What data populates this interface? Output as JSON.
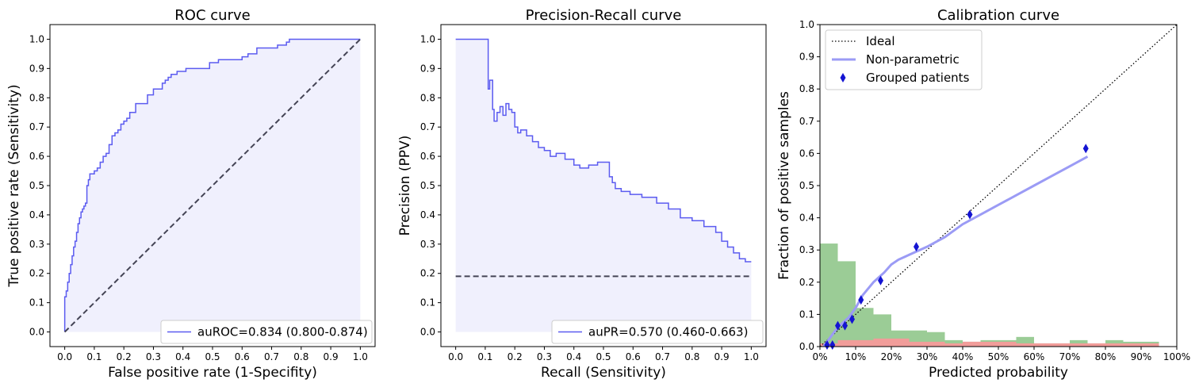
{
  "colors": {
    "curve": "#5b5bf0",
    "fill": "#f0f0fd",
    "chance": "#444455",
    "nonparam": "#9b9bf5",
    "marker": "#1414d2",
    "hist_green": "#9bcc96",
    "hist_red": "#f59a9a"
  },
  "chart_data": [
    {
      "type": "line",
      "title": "ROC curve",
      "xlabel": "False positive rate (1-Specifity)",
      "ylabel": "True positive rate (Sensitivity)",
      "xlim": [
        0,
        1
      ],
      "ylim": [
        0,
        1
      ],
      "xticks": [
        "0.0",
        "0.1",
        "0.2",
        "0.3",
        "0.4",
        "0.5",
        "0.6",
        "0.7",
        "0.8",
        "0.9",
        "1.0"
      ],
      "yticks": [
        "0.0",
        "0.1",
        "0.2",
        "0.3",
        "0.4",
        "0.5",
        "0.6",
        "0.7",
        "0.8",
        "0.9",
        "1.0"
      ],
      "legend_position": "lower-right",
      "series": [
        {
          "name": "auROC=0.834 (0.800-0.874)",
          "x": [
            0,
            0,
            0.005,
            0.005,
            0.01,
            0.01,
            0.015,
            0.015,
            0.02,
            0.02,
            0.025,
            0.025,
            0.03,
            0.03,
            0.035,
            0.035,
            0.04,
            0.04,
            0.045,
            0.045,
            0.05,
            0.05,
            0.055,
            0.055,
            0.06,
            0.06,
            0.065,
            0.065,
            0.07,
            0.07,
            0.075,
            0.075,
            0.08,
            0.08,
            0.085,
            0.085,
            0.09,
            0.09,
            0.1,
            0.1,
            0.11,
            0.11,
            0.12,
            0.12,
            0.13,
            0.13,
            0.14,
            0.14,
            0.15,
            0.15,
            0.16,
            0.16,
            0.17,
            0.17,
            0.18,
            0.18,
            0.19,
            0.19,
            0.2,
            0.2,
            0.21,
            0.21,
            0.22,
            0.22,
            0.23,
            0.23,
            0.24,
            0.24,
            0.26,
            0.26,
            0.28,
            0.28,
            0.3,
            0.3,
            0.31,
            0.31,
            0.33,
            0.33,
            0.34,
            0.34,
            0.35,
            0.35,
            0.36,
            0.36,
            0.37,
            0.37,
            0.38,
            0.38,
            0.39,
            0.39,
            0.41,
            0.41,
            0.43,
            0.43,
            0.49,
            0.49,
            0.52,
            0.52,
            0.55,
            0.55,
            0.6,
            0.6,
            0.62,
            0.62,
            0.65,
            0.65,
            0.72,
            0.72,
            0.75,
            0.75,
            0.76,
            0.76,
            1.0
          ],
          "y": [
            0,
            0.12,
            0.12,
            0.14,
            0.14,
            0.17,
            0.17,
            0.2,
            0.2,
            0.23,
            0.23,
            0.26,
            0.26,
            0.29,
            0.29,
            0.31,
            0.31,
            0.34,
            0.34,
            0.37,
            0.37,
            0.39,
            0.39,
            0.41,
            0.41,
            0.42,
            0.42,
            0.43,
            0.43,
            0.44,
            0.44,
            0.5,
            0.5,
            0.52,
            0.52,
            0.54,
            0.54,
            0.54,
            0.54,
            0.55,
            0.55,
            0.56,
            0.56,
            0.58,
            0.58,
            0.6,
            0.6,
            0.61,
            0.61,
            0.64,
            0.64,
            0.67,
            0.67,
            0.68,
            0.68,
            0.69,
            0.69,
            0.71,
            0.71,
            0.72,
            0.72,
            0.73,
            0.73,
            0.75,
            0.75,
            0.75,
            0.75,
            0.78,
            0.78,
            0.78,
            0.78,
            0.81,
            0.81,
            0.83,
            0.83,
            0.83,
            0.83,
            0.85,
            0.85,
            0.86,
            0.86,
            0.87,
            0.87,
            0.88,
            0.88,
            0.88,
            0.88,
            0.89,
            0.89,
            0.89,
            0.89,
            0.9,
            0.9,
            0.9,
            0.9,
            0.92,
            0.92,
            0.93,
            0.93,
            0.93,
            0.93,
            0.94,
            0.94,
            0.95,
            0.95,
            0.97,
            0.97,
            0.98,
            0.98,
            0.99,
            0.99,
            1.0,
            1.0
          ]
        },
        {
          "name": "",
          "style": "dashed",
          "x": [
            0,
            1
          ],
          "y": [
            0,
            1
          ]
        }
      ]
    },
    {
      "type": "line",
      "title": "Precision-Recall curve",
      "xlabel": "Recall (Sensitivity)",
      "ylabel": "Precision (PPV)",
      "xlim": [
        0,
        1
      ],
      "ylim": [
        0,
        1
      ],
      "xticks": [
        "0.0",
        "0.1",
        "0.2",
        "0.3",
        "0.4",
        "0.5",
        "0.6",
        "0.7",
        "0.8",
        "0.9",
        "1.0"
      ],
      "yticks": [
        "0.0",
        "0.1",
        "0.2",
        "0.3",
        "0.4",
        "0.5",
        "0.6",
        "0.7",
        "0.8",
        "0.9",
        "1.0"
      ],
      "legend_position": "lower-right",
      "series": [
        {
          "name": "auPR=0.570 (0.460-0.663)",
          "x": [
            0,
            0.11,
            0.11,
            0.115,
            0.115,
            0.125,
            0.125,
            0.13,
            0.13,
            0.14,
            0.14,
            0.15,
            0.15,
            0.16,
            0.16,
            0.17,
            0.17,
            0.18,
            0.18,
            0.19,
            0.19,
            0.2,
            0.2,
            0.21,
            0.21,
            0.22,
            0.22,
            0.24,
            0.24,
            0.26,
            0.26,
            0.28,
            0.28,
            0.3,
            0.3,
            0.32,
            0.32,
            0.34,
            0.34,
            0.37,
            0.37,
            0.4,
            0.4,
            0.42,
            0.42,
            0.45,
            0.45,
            0.48,
            0.48,
            0.5,
            0.5,
            0.52,
            0.52,
            0.53,
            0.53,
            0.54,
            0.54,
            0.56,
            0.56,
            0.59,
            0.59,
            0.63,
            0.63,
            0.68,
            0.68,
            0.72,
            0.72,
            0.76,
            0.76,
            0.8,
            0.8,
            0.84,
            0.84,
            0.88,
            0.88,
            0.9,
            0.9,
            0.92,
            0.92,
            0.94,
            0.94,
            0.96,
            0.96,
            0.98,
            0.98,
            1.0
          ],
          "y": [
            1.0,
            1.0,
            0.83,
            0.83,
            0.86,
            0.86,
            0.76,
            0.76,
            0.72,
            0.72,
            0.75,
            0.75,
            0.77,
            0.77,
            0.74,
            0.74,
            0.78,
            0.78,
            0.76,
            0.76,
            0.75,
            0.75,
            0.7,
            0.7,
            0.68,
            0.68,
            0.69,
            0.69,
            0.67,
            0.67,
            0.65,
            0.65,
            0.63,
            0.63,
            0.62,
            0.62,
            0.6,
            0.6,
            0.61,
            0.61,
            0.59,
            0.59,
            0.57,
            0.57,
            0.56,
            0.56,
            0.57,
            0.57,
            0.58,
            0.58,
            0.58,
            0.58,
            0.53,
            0.53,
            0.51,
            0.51,
            0.49,
            0.49,
            0.48,
            0.48,
            0.47,
            0.47,
            0.46,
            0.46,
            0.44,
            0.44,
            0.42,
            0.42,
            0.39,
            0.39,
            0.38,
            0.38,
            0.36,
            0.36,
            0.34,
            0.34,
            0.31,
            0.31,
            0.29,
            0.29,
            0.27,
            0.27,
            0.25,
            0.25,
            0.24,
            0.24
          ]
        },
        {
          "name": "",
          "style": "dashed",
          "x": [
            0,
            1
          ],
          "y": [
            0.19,
            0.19
          ]
        }
      ]
    },
    {
      "type": "line",
      "title": "Calibration curve",
      "xlabel": "Predicted probability",
      "ylabel": "Fraction of positive samples",
      "xlim": [
        0,
        1
      ],
      "ylim": [
        0,
        1
      ],
      "xticks": [
        "0%",
        "10%",
        "20%",
        "30%",
        "40%",
        "50%",
        "60%",
        "70%",
        "80%",
        "90%",
        "100%"
      ],
      "yticks": [
        "0.0",
        "0.1",
        "0.2",
        "0.3",
        "0.4",
        "0.5",
        "0.6",
        "0.7",
        "0.8",
        "0.9",
        "1.0"
      ],
      "legend_position": "top-left",
      "series": [
        {
          "name": "Ideal",
          "style": "dotted",
          "x": [
            0,
            1
          ],
          "y": [
            0,
            1
          ]
        },
        {
          "name": "Non-parametric",
          "x": [
            0.01,
            0.03,
            0.05,
            0.08,
            0.1,
            0.12,
            0.15,
            0.18,
            0.2,
            0.22,
            0.25,
            0.3,
            0.35,
            0.4,
            0.45,
            0.5,
            0.55,
            0.6,
            0.65,
            0.7,
            0.75
          ],
          "y": [
            0.0,
            0.03,
            0.06,
            0.09,
            0.12,
            0.16,
            0.2,
            0.23,
            0.255,
            0.27,
            0.285,
            0.31,
            0.34,
            0.38,
            0.41,
            0.44,
            0.47,
            0.5,
            0.53,
            0.56,
            0.59
          ]
        },
        {
          "name": "Grouped patients",
          "marker": "diamond",
          "x": [
            0.02,
            0.035,
            0.05,
            0.07,
            0.09,
            0.115,
            0.17,
            0.27,
            0.42,
            0.745
          ],
          "y": [
            0.005,
            0.005,
            0.065,
            0.065,
            0.085,
            0.145,
            0.205,
            0.31,
            0.41,
            0.615
          ]
        }
      ],
      "histograms": [
        {
          "name": "",
          "color_key": "hist_green",
          "bins": [
            0,
            0.05,
            0.1,
            0.15,
            0.2,
            0.25,
            0.3,
            0.35,
            0.4,
            0.45,
            0.5,
            0.55,
            0.6,
            0.65,
            0.7,
            0.75,
            0.8,
            0.85,
            0.9,
            0.95
          ],
          "heights": [
            0.32,
            0.265,
            0.12,
            0.1,
            0.05,
            0.05,
            0.045,
            0.02,
            0.015,
            0.02,
            0.02,
            0.03,
            0.01,
            0.01,
            0.02,
            0.01,
            0.02,
            0.015,
            0.015,
            0.0
          ]
        },
        {
          "name": "",
          "color_key": "hist_red",
          "bins": [
            0,
            0.05,
            0.1,
            0.15,
            0.2,
            0.25,
            0.3,
            0.35,
            0.4,
            0.45,
            0.5,
            0.55,
            0.6,
            0.65,
            0.7,
            0.75,
            0.8,
            0.85,
            0.9,
            0.95
          ],
          "heights": [
            0.01,
            0.02,
            0.02,
            0.025,
            0.025,
            0.015,
            0.015,
            0.01,
            0.015,
            0.015,
            0.015,
            0.01,
            0.01,
            0.01,
            0.01,
            0.01,
            0.01,
            0.01,
            0.01,
            0.0
          ]
        }
      ]
    }
  ]
}
